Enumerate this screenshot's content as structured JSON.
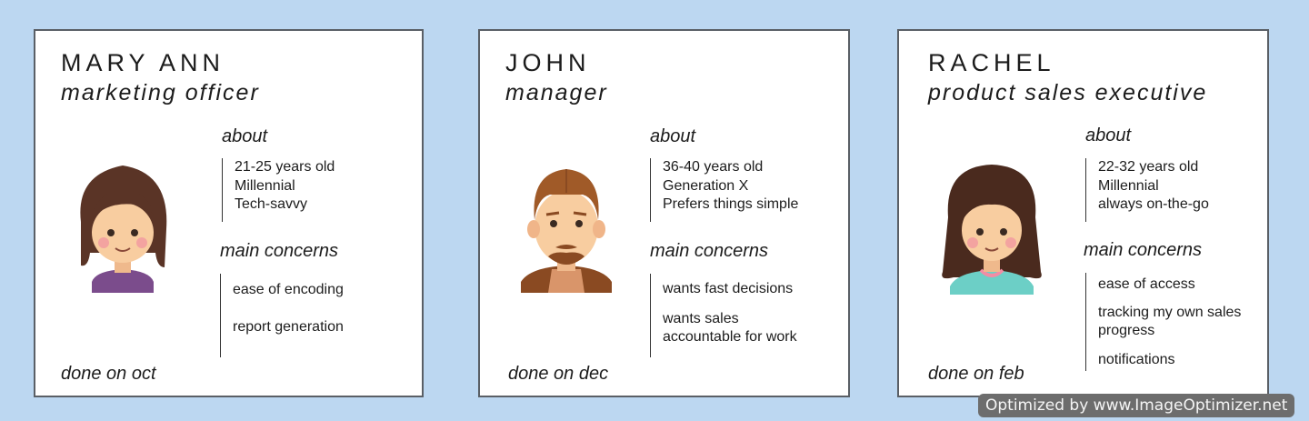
{
  "personas": [
    {
      "name": "MARY ANN",
      "role": "marketing officer",
      "about_heading": "about",
      "about": [
        "21-25 years old",
        "Millennial",
        "Tech-savvy"
      ],
      "concerns_heading": "main concerns",
      "concerns": [
        "ease of encoding",
        "report generation"
      ],
      "done": "done on oct",
      "avatar": "woman-avatar-icon"
    },
    {
      "name": "JOHN",
      "role": "manager",
      "about_heading": "about",
      "about": [
        "36-40 years old",
        "Generation X",
        "Prefers things simple"
      ],
      "concerns_heading": "main concerns",
      "concerns": [
        "wants fast decisions",
        "wants sales accountable for work"
      ],
      "done": "done on dec",
      "avatar": "man-avatar-icon"
    },
    {
      "name": "RACHEL",
      "role": "product sales executive",
      "about_heading": "about",
      "about": [
        "22-32 years old",
        "Millennial",
        "always on-the-go"
      ],
      "concerns_heading": "main concerns",
      "concerns": [
        "ease of access",
        "tracking my own sales progress",
        "notifications"
      ],
      "done": "done on feb",
      "avatar": "girl-avatar-icon"
    }
  ],
  "watermark": "Optimized by www.ImageOptimizer.net",
  "colors": {
    "background": "#bcd7f1",
    "card": "#ffffff",
    "border": "#5a5f66",
    "skin": "#f8cda0",
    "hair_woman": "#5a3426",
    "hair_man": "#a05a28"
  }
}
